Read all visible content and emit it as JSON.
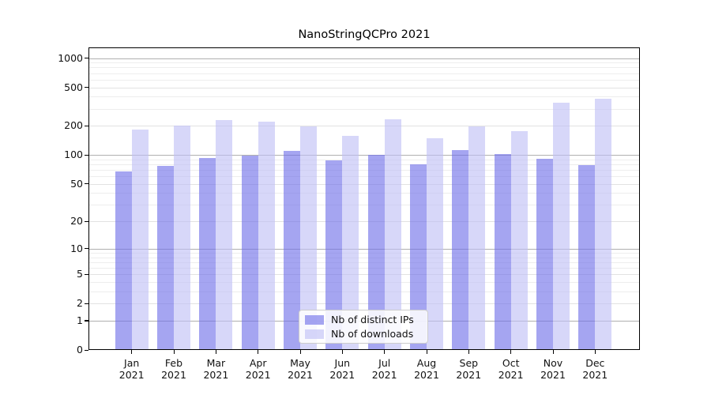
{
  "chart_data": {
    "type": "bar",
    "title": "NanoStringQCPro 2021",
    "year_label": "2021",
    "categories": [
      "Jan",
      "Feb",
      "Mar",
      "Apr",
      "May",
      "Jun",
      "Jul",
      "Aug",
      "Sep",
      "Oct",
      "Nov",
      "Dec"
    ],
    "series": [
      {
        "name": "Nb of distinct IPs",
        "color": "rgba(110,110,232,0.62)",
        "values": [
          67,
          77,
          93,
          98,
          110,
          88,
          100,
          80,
          112,
          103,
          91,
          79
        ]
      },
      {
        "name": "Nb of downloads",
        "color": "rgba(190,190,245,0.62)",
        "values": [
          183,
          200,
          229,
          222,
          196,
          158,
          236,
          150,
          198,
          177,
          350,
          385
        ]
      }
    ],
    "yscale": "log1p",
    "yticks": [
      0,
      1,
      2,
      5,
      10,
      20,
      50,
      100,
      200,
      500,
      1000
    ],
    "ylim": [
      0,
      1300
    ],
    "xlabel": "",
    "ylabel": "",
    "grid": true,
    "legend_position": "lower center"
  },
  "colors": {
    "grid_major": "#b0b0b0",
    "grid_minor": "#ededed",
    "grid_mid": "#e2e2e2",
    "frame": "#000000",
    "background": "#ffffff"
  }
}
